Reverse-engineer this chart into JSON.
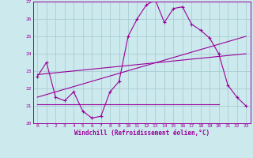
{
  "xlabel": "Windchill (Refroidissement éolien,°C)",
  "bg_color": "#cce9ed",
  "grid_color": "#aacdd4",
  "line_color": "#990099",
  "xlim": [
    -0.5,
    23.5
  ],
  "ylim": [
    20,
    27
  ],
  "yticks": [
    20,
    21,
    22,
    23,
    24,
    25,
    26,
    27
  ],
  "xticks": [
    0,
    1,
    2,
    3,
    4,
    5,
    6,
    7,
    8,
    9,
    10,
    11,
    12,
    13,
    14,
    15,
    16,
    17,
    18,
    19,
    20,
    21,
    22,
    23
  ],
  "series_main": {
    "x": [
      0,
      1,
      2,
      3,
      4,
      5,
      6,
      7,
      8,
      9,
      10,
      11,
      12,
      13,
      14,
      15,
      16,
      17,
      18,
      19,
      20,
      21,
      22,
      23
    ],
    "y": [
      22.7,
      23.5,
      21.5,
      21.3,
      21.8,
      20.7,
      20.3,
      20.4,
      21.8,
      22.4,
      25.0,
      26.0,
      26.8,
      27.1,
      25.8,
      26.6,
      26.7,
      25.7,
      25.35,
      24.9,
      24.0,
      22.2,
      21.5,
      21.0
    ]
  },
  "series_line1": {
    "x": [
      0,
      23
    ],
    "y": [
      21.5,
      25.0
    ]
  },
  "series_line2": {
    "x": [
      0,
      23
    ],
    "y": [
      22.8,
      24.0
    ]
  },
  "series_flat": {
    "x": [
      0,
      20
    ],
    "y": [
      21.1,
      21.1
    ]
  },
  "series_flat2": {
    "x": [
      20,
      23
    ],
    "y": [
      21.1,
      21.0
    ]
  }
}
